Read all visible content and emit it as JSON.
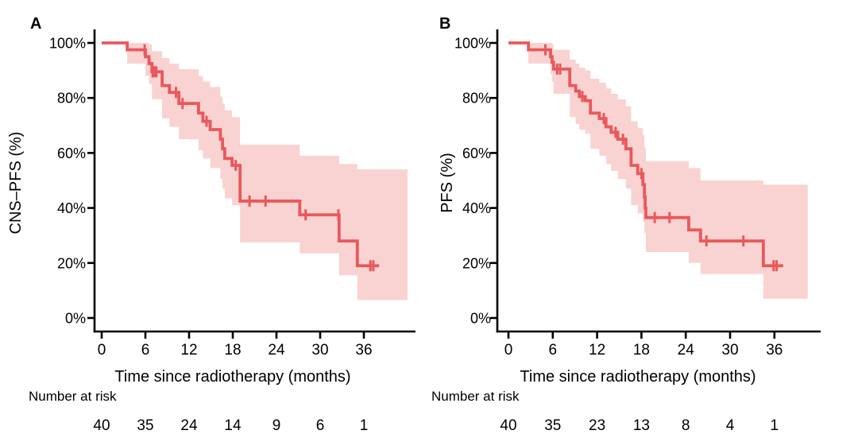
{
  "page": {
    "background": "#ffffff"
  },
  "colors": {
    "curve": "#e9585c",
    "ci_band": "#f9d3d1",
    "axis": "#000000",
    "text": "#000000"
  },
  "chart_data": [
    {
      "panel": "A",
      "type": "line",
      "subtype": "kaplan-meier-step",
      "ylabel": "CNS–PFS (%)",
      "xlabel": "Time since radiotherapy (months)",
      "x_ticks": [
        0,
        6,
        12,
        18,
        24,
        30,
        36
      ],
      "y_ticks": [
        {
          "pct": 0,
          "label": "0%"
        },
        {
          "pct": 20,
          "label": "20%"
        },
        {
          "pct": 40,
          "label": "40%"
        },
        {
          "pct": 60,
          "label": "60%"
        },
        {
          "pct": 80,
          "label": "80%"
        },
        {
          "pct": 100,
          "label": "100%"
        }
      ],
      "xlim": [
        0,
        42
      ],
      "ylim": [
        0,
        100
      ],
      "grid": false,
      "survival_steps": [
        [
          0,
          100
        ],
        [
          3.5,
          97.5
        ],
        [
          6.0,
          95
        ],
        [
          6.5,
          92.5
        ],
        [
          6.9,
          89.5
        ],
        [
          8.3,
          84.5
        ],
        [
          9.3,
          82
        ],
        [
          10.6,
          78
        ],
        [
          13.3,
          74.5
        ],
        [
          13.9,
          71.5
        ],
        [
          14.9,
          68.5
        ],
        [
          16.3,
          65
        ],
        [
          16.6,
          61.5
        ],
        [
          16.9,
          58
        ],
        [
          17.9,
          55.5
        ],
        [
          19.0,
          42.5
        ],
        [
          27.2,
          37.5
        ],
        [
          32.6,
          28
        ],
        [
          35.1,
          19
        ]
      ],
      "censor_marks": [
        [
          5.9,
          97.5
        ],
        [
          7.0,
          89.5
        ],
        [
          7.25,
          89.5
        ],
        [
          7.5,
          89.5
        ],
        [
          10.2,
          82
        ],
        [
          11.1,
          78
        ],
        [
          14.4,
          71.5
        ],
        [
          18.4,
          55.5
        ],
        [
          20.3,
          42.5
        ],
        [
          22.5,
          42.5
        ],
        [
          28.0,
          37.5
        ],
        [
          32.5,
          37.5
        ],
        [
          36.9,
          19
        ],
        [
          37.3,
          19
        ]
      ],
      "ci_steps": [
        [
          3.5,
          92.5,
          100
        ],
        [
          6.0,
          88,
          100
        ],
        [
          6.5,
          85,
          99.5
        ],
        [
          6.9,
          79.5,
          97
        ],
        [
          8.3,
          72.5,
          94.5
        ],
        [
          9.3,
          69.5,
          92.5
        ],
        [
          10.6,
          65,
          90.5
        ],
        [
          13.3,
          61,
          88
        ],
        [
          13.9,
          58,
          86
        ],
        [
          14.9,
          54.5,
          84
        ],
        [
          16.3,
          50.5,
          80.5
        ],
        [
          16.6,
          47,
          78
        ],
        [
          16.9,
          43.5,
          75.5
        ],
        [
          17.9,
          41,
          73
        ],
        [
          19.0,
          27.5,
          63
        ],
        [
          27.2,
          23.5,
          59
        ],
        [
          32.6,
          15.5,
          56
        ],
        [
          35.1,
          6.5,
          54
        ]
      ],
      "curve_end_time": 38.1,
      "band_end_time": 42,
      "number_at_risk": {
        "label": "Number at risk",
        "times": [
          0,
          6,
          12,
          18,
          24,
          30,
          36
        ],
        "counts": [
          40,
          35,
          24,
          14,
          9,
          6,
          1
        ]
      }
    },
    {
      "panel": "B",
      "type": "line",
      "subtype": "kaplan-meier-step",
      "ylabel": "PFS (%)",
      "xlabel": "Time since radiotherapy (months)",
      "x_ticks": [
        0,
        6,
        12,
        18,
        24,
        30,
        36
      ],
      "y_ticks": [
        {
          "pct": 0,
          "label": "0%"
        },
        {
          "pct": 20,
          "label": "20%"
        },
        {
          "pct": 40,
          "label": "40%"
        },
        {
          "pct": 60,
          "label": "60%"
        },
        {
          "pct": 80,
          "label": "80%"
        },
        {
          "pct": 100,
          "label": "100%"
        }
      ],
      "xlim": [
        0,
        40.5
      ],
      "ylim": [
        0,
        100
      ],
      "grid": false,
      "survival_steps": [
        [
          0,
          100
        ],
        [
          2.7,
          97.5
        ],
        [
          5.7,
          95
        ],
        [
          5.9,
          93
        ],
        [
          6.1,
          90.5
        ],
        [
          8.3,
          84.5
        ],
        [
          9.1,
          82.5
        ],
        [
          9.6,
          80.5
        ],
        [
          10.4,
          79
        ],
        [
          11.1,
          74.5
        ],
        [
          12.3,
          72.5
        ],
        [
          13.2,
          69.5
        ],
        [
          13.9,
          67.5
        ],
        [
          14.8,
          65
        ],
        [
          15.9,
          61.5
        ],
        [
          16.6,
          55.5
        ],
        [
          17.5,
          52.5
        ],
        [
          18.2,
          48.5
        ],
        [
          18.4,
          44
        ],
        [
          18.5,
          40
        ],
        [
          18.6,
          36.5
        ],
        [
          24.4,
          32
        ],
        [
          26.0,
          28
        ],
        [
          34.5,
          19
        ]
      ],
      "censor_marks": [
        [
          5.0,
          97.5
        ],
        [
          6.6,
          90.5
        ],
        [
          7.0,
          90.5
        ],
        [
          10.0,
          80.5
        ],
        [
          12.9,
          72.5
        ],
        [
          14.5,
          67.5
        ],
        [
          15.5,
          65
        ],
        [
          18.0,
          52.5
        ],
        [
          19.8,
          36.5
        ],
        [
          21.8,
          36.5
        ],
        [
          26.8,
          28
        ],
        [
          31.8,
          28
        ],
        [
          35.9,
          19
        ],
        [
          36.3,
          19
        ]
      ],
      "ci_steps": [
        [
          2.7,
          92.5,
          100
        ],
        [
          5.7,
          88.5,
          100
        ],
        [
          5.9,
          86,
          99.5
        ],
        [
          6.1,
          81.5,
          97.5
        ],
        [
          8.3,
          73,
          94
        ],
        [
          9.1,
          70.5,
          92.5
        ],
        [
          9.6,
          68.5,
          91
        ],
        [
          10.4,
          67,
          90
        ],
        [
          11.1,
          61.5,
          87
        ],
        [
          12.3,
          59,
          85.5
        ],
        [
          13.2,
          56,
          83.5
        ],
        [
          13.9,
          53.5,
          81.5
        ],
        [
          14.8,
          50.5,
          79.5
        ],
        [
          15.9,
          47,
          77
        ],
        [
          16.6,
          41,
          71.5
        ],
        [
          17.5,
          38,
          69
        ],
        [
          18.2,
          35,
          66.5
        ],
        [
          18.4,
          31,
          62
        ],
        [
          18.6,
          24,
          57
        ],
        [
          24.4,
          20,
          54.5
        ],
        [
          26.0,
          16,
          50
        ],
        [
          34.5,
          7,
          48.5
        ]
      ],
      "curve_end_time": 37.2,
      "band_end_time": 40.5,
      "number_at_risk": {
        "label": "Number at risk",
        "times": [
          0,
          6,
          12,
          18,
          24,
          30,
          36
        ],
        "counts": [
          40,
          35,
          23,
          13,
          8,
          4,
          1
        ]
      }
    }
  ]
}
